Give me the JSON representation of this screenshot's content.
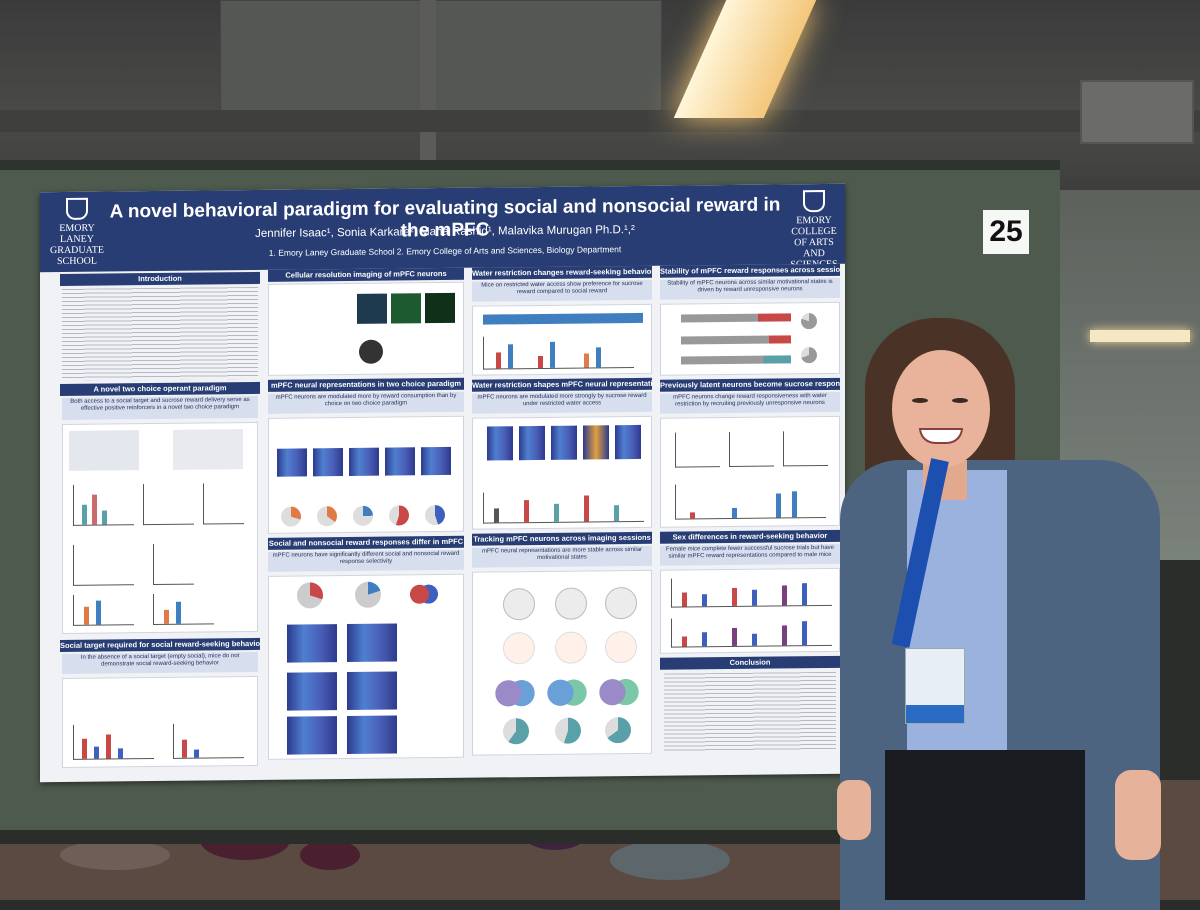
{
  "poster": {
    "title": "A novel behavioral paradigm for evaluating social and nonsocial reward in the mPFC",
    "authors": "Jennifer Isaac¹, Sonia Karkare², Maha Rashid¹, Malavika Murugan Ph.D.¹,²",
    "affiliations": "1. Emory Laney Graduate School 2. Emory College of Arts and Sciences, Biology Department",
    "logo_left": "EMORY LANEY GRADUATE SCHOOL",
    "logo_right": "EMORY COLLEGE OF ARTS AND SCIENCES",
    "sections": {
      "introduction": "Introduction",
      "operant": "A novel two choice operant paradigm",
      "operant_caption": "Both access to a social target and sucrose reward delivery serve as effective positive reinforcers in a novel two choice paradigm",
      "social_target": "Social target required for social reward-seeking behavior",
      "social_target_caption": "In the absence of a social target (empty social), mice do not demonstrate social reward-seeking behavior",
      "imaging": "Cellular resolution imaging of mPFC neurons",
      "neural_reps": "mPFC neural representations in two choice paradigm",
      "neural_reps_caption": "mPFC neurons are modulated more by reward consumption than by choice on two choice paradigm",
      "differ": "Social and nonsocial reward responses differ in mPFC",
      "differ_caption": "mPFC neurons have significantly different social and nonsocial reward response selectivity",
      "water_behavior": "Water restriction changes reward-seeking behavior",
      "water_behavior_caption": "Mice on restricted water access show preference for sucrose reward compared to social reward",
      "water_neural": "Water restriction shapes mPFC neural representations",
      "water_neural_caption": "mPFC neurons are modulated more strongly by sucrose reward under restricted water access",
      "tracking": "Tracking mPFC neurons across imaging sessions",
      "tracking_caption": "mPFC neural representations are more stable across similar motivational states",
      "stability": "Stability of mPFC reward responses across sessions",
      "stability_caption": "Stability of mPFC neurons across similar motivational states is driven by reward unresponsive neurons",
      "latent": "Previously latent neurons become sucrose responsive",
      "latent_caption": "mPFC neurons change reward responsiveness with water restriction by recruiting previously unresponsive neurons",
      "sex": "Sex differences in reward-seeking behavior",
      "sex_caption": "Female mice complete fewer successful sucrose trials but have similar mPFC reward representations compared to male mice",
      "conclusion": "Conclusion"
    }
  },
  "board_number": "25",
  "colors": {
    "banner": "#283d74",
    "caption": "#d7deee",
    "board": "#4d5a4d"
  }
}
